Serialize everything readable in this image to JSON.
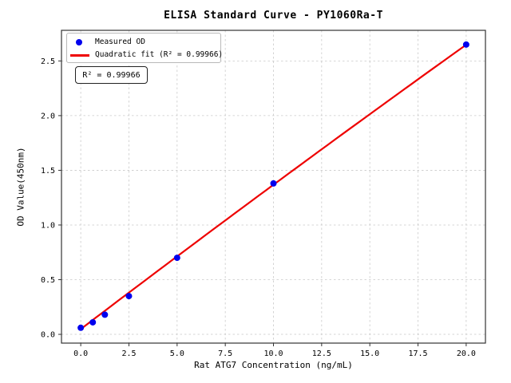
{
  "title": "ELISA Standard Curve - PY1060Ra-T",
  "colors": {
    "marker": "#0000ee",
    "fit_line": "#ee0000",
    "grid": "#c9c9c9",
    "axis": "#333333",
    "text": "#000000",
    "legend_border": "#b9b9b9"
  },
  "legend": {
    "items": [
      {
        "label": "Measured OD",
        "marker": "dot"
      },
      {
        "label": "Quadratic fit (R² = 0.99966)",
        "marker": "line"
      }
    ]
  },
  "annotation_box": {
    "text": "R² = 0.99966"
  },
  "chart_data": {
    "type": "scatter",
    "title": "ELISA Standard Curve - PY1060Ra-T",
    "xlabel": "Rat ATG7 Concentration (ng/mL)",
    "ylabel": "OD Value(450nm)",
    "xlim": [
      -1.0,
      21.0
    ],
    "ylim": [
      -0.08,
      2.78
    ],
    "xticks": [
      0.0,
      2.5,
      5.0,
      7.5,
      10.0,
      12.5,
      15.0,
      17.5,
      20.0
    ],
    "yticks": [
      0.0,
      0.5,
      1.0,
      1.5,
      2.0,
      2.5
    ],
    "grid": true,
    "grid_style": "dashed",
    "legend_position": "upper left",
    "series": [
      {
        "name": "Measured OD",
        "type": "scatter",
        "color": "#0000ee",
        "x": [
          0,
          0.625,
          1.25,
          2.5,
          5,
          10,
          20
        ],
        "y": [
          0.06,
          0.11,
          0.18,
          0.35,
          0.7,
          1.38,
          2.65
        ]
      },
      {
        "name": "Quadratic fit (R² = 0.99966)",
        "type": "line",
        "color": "#ee0000",
        "fit": {
          "kind": "quadratic",
          "coefficients": {
            "intercept": 0.048,
            "linear": 0.134,
            "quadratic": -0.0002
          },
          "r_squared": 0.99966,
          "x_range": [
            0,
            20
          ]
        }
      }
    ],
    "annotation": "R² = 0.99966"
  }
}
